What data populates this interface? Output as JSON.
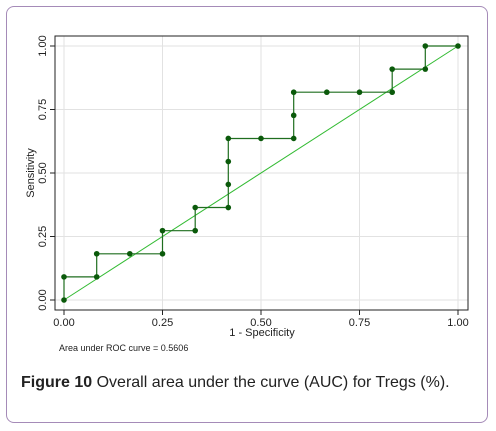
{
  "caption": {
    "label": "Figure 10",
    "text": "Overall area under the curve (AUC) for Tregs (%)."
  },
  "chart_data": {
    "type": "line",
    "title": "",
    "xlabel": "1 - Specificity",
    "ylabel": "Sensitivity",
    "xlim": [
      0,
      1
    ],
    "ylim": [
      0,
      1
    ],
    "xticks": [
      "0.00",
      "0.25",
      "0.50",
      "0.75",
      "1.00"
    ],
    "yticks": [
      "0.00",
      "0.25",
      "0.50",
      "0.75",
      "1.00"
    ],
    "grid": true,
    "annotation": "Area under ROC curve = 0.5606",
    "colors": {
      "curve": "#1f6e1f",
      "marker": "#0b5a0b",
      "reference": "#33bb33",
      "grid": "#e2e2e2"
    },
    "series": [
      {
        "name": "ROC",
        "x": [
          0,
          0,
          0.083,
          0.083,
          0.167,
          0.25,
          0.25,
          0.333,
          0.333,
          0.417,
          0.417,
          0.417,
          0.417,
          0.5,
          0.583,
          0.583,
          0.583,
          0.667,
          0.75,
          0.833,
          0.833,
          0.917,
          0.917,
          1
        ],
        "y": [
          0,
          0.091,
          0.091,
          0.182,
          0.182,
          0.182,
          0.273,
          0.273,
          0.364,
          0.364,
          0.455,
          0.545,
          0.636,
          0.636,
          0.636,
          0.727,
          0.818,
          0.818,
          0.818,
          0.818,
          0.909,
          0.909,
          1,
          1
        ]
      },
      {
        "name": "",
        "x": [
          0,
          1
        ],
        "y": [
          0,
          1
        ]
      }
    ]
  }
}
